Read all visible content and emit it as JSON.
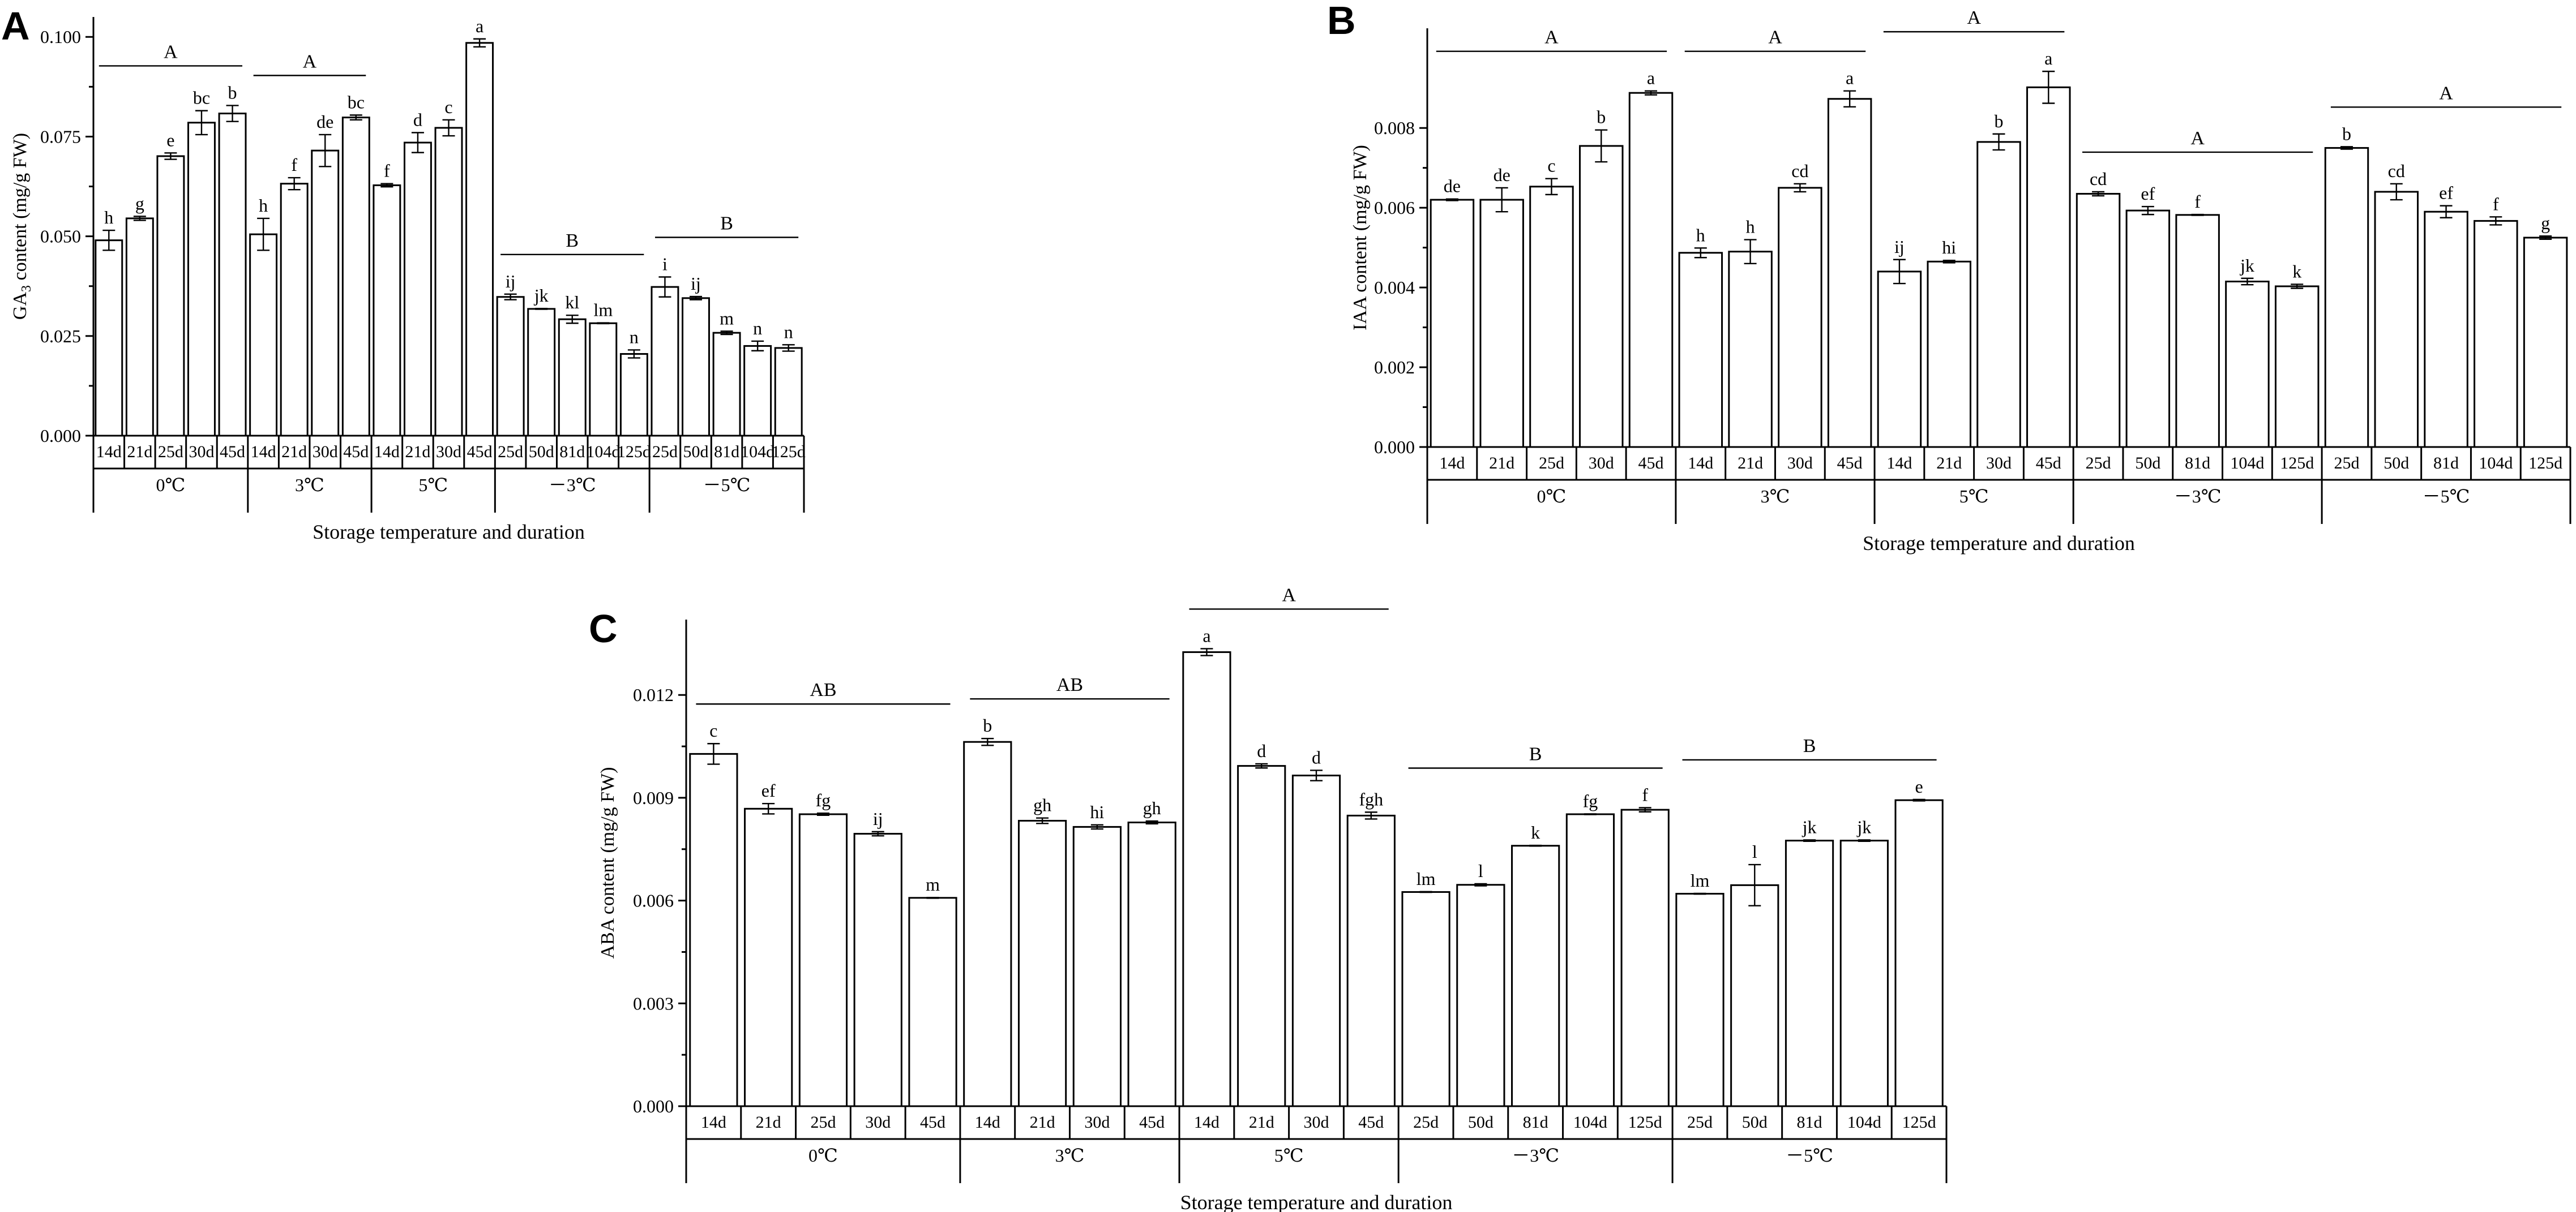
{
  "chart_data": [
    {
      "type": "bar",
      "panel_label": "A",
      "ylabel_prefix": "GA",
      "ylabel_sub": "3",
      "ylabel_suffix": " content (mg/g FW)",
      "xlabel": "Storage temperature and duration",
      "ylim": [
        0,
        0.105
      ],
      "yticks": [
        0,
        0.025,
        0.05,
        0.075,
        0.1
      ],
      "ytick_labels": [
        "0.000",
        "0.025",
        "0.050",
        "0.075",
        "0.100"
      ],
      "groups": [
        {
          "name": "0℃",
          "group_letter": "A",
          "bars": [
            {
              "category": "14d",
              "value": 0.049,
              "error": 0.0025,
              "sig": "h"
            },
            {
              "category": "21d",
              "value": 0.0545,
              "error": 0.0005,
              "sig": "g"
            },
            {
              "category": "25d",
              "value": 0.0701,
              "error": 0.0008,
              "sig": "e"
            },
            {
              "category": "30d",
              "value": 0.0785,
              "error": 0.003,
              "sig": "bc"
            },
            {
              "category": "45d",
              "value": 0.0808,
              "error": 0.002,
              "sig": "b"
            }
          ]
        },
        {
          "name": "3℃",
          "group_letter": "A",
          "bars": [
            {
              "category": "14d",
              "value": 0.0505,
              "error": 0.004,
              "sig": "h"
            },
            {
              "category": "21d",
              "value": 0.0632,
              "error": 0.0015,
              "sig": "f"
            },
            {
              "category": "30d",
              "value": 0.0715,
              "error": 0.004,
              "sig": "de"
            },
            {
              "category": "45d",
              "value": 0.0798,
              "error": 0.0006,
              "sig": "bc"
            }
          ]
        },
        {
          "name": "5℃",
          "group_letter": "A",
          "bars": [
            {
              "category": "14d",
              "value": 0.0628,
              "error": 0.0004,
              "sig": "f"
            },
            {
              "category": "21d",
              "value": 0.0735,
              "error": 0.0025,
              "sig": "d"
            },
            {
              "category": "30d",
              "value": 0.0772,
              "error": 0.002,
              "sig": "c"
            },
            {
              "category": "45d",
              "value": 0.0985,
              "error": 0.001,
              "sig": "a"
            }
          ]
        },
        {
          "name": "－3℃",
          "group_letter": "B",
          "bars": [
            {
              "category": "25d",
              "value": 0.0348,
              "error": 0.0007,
              "sig": "ij"
            },
            {
              "category": "50d",
              "value": 0.0318,
              "error": 0.0001,
              "sig": "jk"
            },
            {
              "category": "81d",
              "value": 0.0292,
              "error": 0.001,
              "sig": "kl"
            },
            {
              "category": "104d",
              "value": 0.0282,
              "error": 0.0001,
              "sig": "lm"
            },
            {
              "category": "125d",
              "value": 0.0205,
              "error": 0.001,
              "sig": "n"
            }
          ]
        },
        {
          "name": "－5℃",
          "group_letter": "B",
          "bars": [
            {
              "category": "25d",
              "value": 0.0373,
              "error": 0.0025,
              "sig": "i"
            },
            {
              "category": "50d",
              "value": 0.0345,
              "error": 0.0004,
              "sig": "ij"
            },
            {
              "category": "81d",
              "value": 0.0258,
              "error": 0.0004,
              "sig": "m"
            },
            {
              "category": "104d",
              "value": 0.0225,
              "error": 0.0012,
              "sig": "n"
            },
            {
              "category": "125d",
              "value": 0.022,
              "error": 0.0008,
              "sig": "n"
            }
          ]
        }
      ]
    },
    {
      "type": "bar",
      "panel_label": "B",
      "ylabel_prefix": "IAA content (mg/g FW)",
      "ylabel_sub": "",
      "ylabel_suffix": "",
      "xlabel": "Storage temperature and duration",
      "ylim": [
        0,
        0.0105
      ],
      "yticks": [
        0,
        0.002,
        0.004,
        0.006,
        0.008
      ],
      "ytick_labels": [
        "0.000",
        "0.002",
        "0.004",
        "0.006",
        "0.008"
      ],
      "groups": [
        {
          "name": "0℃",
          "group_letter": "A",
          "bars": [
            {
              "category": "14d",
              "value": 0.0062,
              "error": 2e-05,
              "sig": "de"
            },
            {
              "category": "21d",
              "value": 0.0062,
              "error": 0.0003,
              "sig": "de"
            },
            {
              "category": "25d",
              "value": 0.00653,
              "error": 0.0002,
              "sig": "c"
            },
            {
              "category": "30d",
              "value": 0.00755,
              "error": 0.0004,
              "sig": "b"
            },
            {
              "category": "45d",
              "value": 0.00888,
              "error": 5e-05,
              "sig": "a"
            }
          ]
        },
        {
          "name": "3℃",
          "group_letter": "A",
          "bars": [
            {
              "category": "14d",
              "value": 0.00487,
              "error": 0.00012,
              "sig": "h"
            },
            {
              "category": "21d",
              "value": 0.0049,
              "error": 0.0003,
              "sig": "h"
            },
            {
              "category": "30d",
              "value": 0.0065,
              "error": 0.0001,
              "sig": "cd"
            },
            {
              "category": "45d",
              "value": 0.00873,
              "error": 0.0002,
              "sig": "a"
            }
          ]
        },
        {
          "name": "5℃",
          "group_letter": "A",
          "bars": [
            {
              "category": "14d",
              "value": 0.0044,
              "error": 0.0003,
              "sig": "ij"
            },
            {
              "category": "21d",
              "value": 0.00465,
              "error": 3e-05,
              "sig": "hi"
            },
            {
              "category": "30d",
              "value": 0.00765,
              "error": 0.0002,
              "sig": "b"
            },
            {
              "category": "45d",
              "value": 0.00902,
              "error": 0.0004,
              "sig": "a"
            }
          ]
        },
        {
          "name": "－3℃",
          "group_letter": "A",
          "bars": [
            {
              "category": "25d",
              "value": 0.00635,
              "error": 5e-05,
              "sig": "cd"
            },
            {
              "category": "50d",
              "value": 0.00593,
              "error": 0.0001,
              "sig": "ef"
            },
            {
              "category": "81d",
              "value": 0.00582,
              "error": 1e-05,
              "sig": "f"
            },
            {
              "category": "104d",
              "value": 0.00415,
              "error": 8e-05,
              "sig": "jk"
            },
            {
              "category": "125d",
              "value": 0.00403,
              "error": 5e-05,
              "sig": "k"
            }
          ]
        },
        {
          "name": "－5℃",
          "group_letter": "A",
          "bars": [
            {
              "category": "25d",
              "value": 0.0075,
              "error": 3e-05,
              "sig": "b"
            },
            {
              "category": "50d",
              "value": 0.0064,
              "error": 0.0002,
              "sig": "cd"
            },
            {
              "category": "81d",
              "value": 0.0059,
              "error": 0.00015,
              "sig": "ef"
            },
            {
              "category": "104d",
              "value": 0.00567,
              "error": 0.0001,
              "sig": "f"
            },
            {
              "category": "125d",
              "value": 0.00525,
              "error": 4e-05,
              "sig": "g"
            }
          ]
        }
      ]
    },
    {
      "type": "bar",
      "panel_label": "C",
      "ylabel_prefix": "ABA content (mg/g FW)",
      "ylabel_sub": "",
      "ylabel_suffix": "",
      "xlabel": "Storage temperature and duration",
      "ylim": [
        0,
        0.0142
      ],
      "yticks": [
        0,
        0.003,
        0.006,
        0.009,
        0.012
      ],
      "ytick_labels": [
        "0.000",
        "0.003",
        "0.006",
        "0.009",
        "0.012"
      ],
      "groups": [
        {
          "name": "0℃",
          "group_letter": "AB",
          "bars": [
            {
              "category": "14d",
              "value": 0.01028,
              "error": 0.0003,
              "sig": "c"
            },
            {
              "category": "21d",
              "value": 0.00868,
              "error": 0.00015,
              "sig": "ef"
            },
            {
              "category": "25d",
              "value": 0.00852,
              "error": 3e-05,
              "sig": "fg"
            },
            {
              "category": "30d",
              "value": 0.00795,
              "error": 6e-05,
              "sig": "ij"
            },
            {
              "category": "45d",
              "value": 0.00608,
              "error": 1e-05,
              "sig": "m"
            }
          ]
        },
        {
          "name": "3℃",
          "group_letter": "AB",
          "bars": [
            {
              "category": "14d",
              "value": 0.01063,
              "error": 0.0001,
              "sig": "b"
            },
            {
              "category": "21d",
              "value": 0.00833,
              "error": 8e-05,
              "sig": "gh"
            },
            {
              "category": "30d",
              "value": 0.00815,
              "error": 6e-05,
              "sig": "hi"
            },
            {
              "category": "45d",
              "value": 0.00828,
              "error": 4e-05,
              "sig": "gh"
            }
          ]
        },
        {
          "name": "5℃",
          "group_letter": "A",
          "bars": [
            {
              "category": "14d",
              "value": 0.01325,
              "error": 0.0001,
              "sig": "a"
            },
            {
              "category": "21d",
              "value": 0.00993,
              "error": 6e-05,
              "sig": "d"
            },
            {
              "category": "30d",
              "value": 0.00965,
              "error": 0.00015,
              "sig": "d"
            },
            {
              "category": "45d",
              "value": 0.00848,
              "error": 0.0001,
              "sig": "fgh"
            }
          ]
        },
        {
          "name": "－3℃",
          "group_letter": "B",
          "bars": [
            {
              "category": "25d",
              "value": 0.00625,
              "error": 1e-05,
              "sig": "lm"
            },
            {
              "category": "50d",
              "value": 0.00646,
              "error": 3e-05,
              "sig": "l"
            },
            {
              "category": "81d",
              "value": 0.0076,
              "error": 1e-05,
              "sig": "k"
            },
            {
              "category": "104d",
              "value": 0.00852,
              "error": 1e-05,
              "sig": "fg"
            },
            {
              "category": "125d",
              "value": 0.00865,
              "error": 6e-05,
              "sig": "f"
            }
          ]
        },
        {
          "name": "－5℃",
          "group_letter": "B",
          "bars": [
            {
              "category": "25d",
              "value": 0.0062,
              "error": 1e-05,
              "sig": "lm"
            },
            {
              "category": "50d",
              "value": 0.00645,
              "error": 0.0006,
              "sig": "l"
            },
            {
              "category": "81d",
              "value": 0.00775,
              "error": 2e-05,
              "sig": "jk"
            },
            {
              "category": "104d",
              "value": 0.00775,
              "error": 2e-05,
              "sig": "jk"
            },
            {
              "category": "125d",
              "value": 0.00893,
              "error": 2e-05,
              "sig": "e"
            }
          ]
        }
      ]
    }
  ]
}
